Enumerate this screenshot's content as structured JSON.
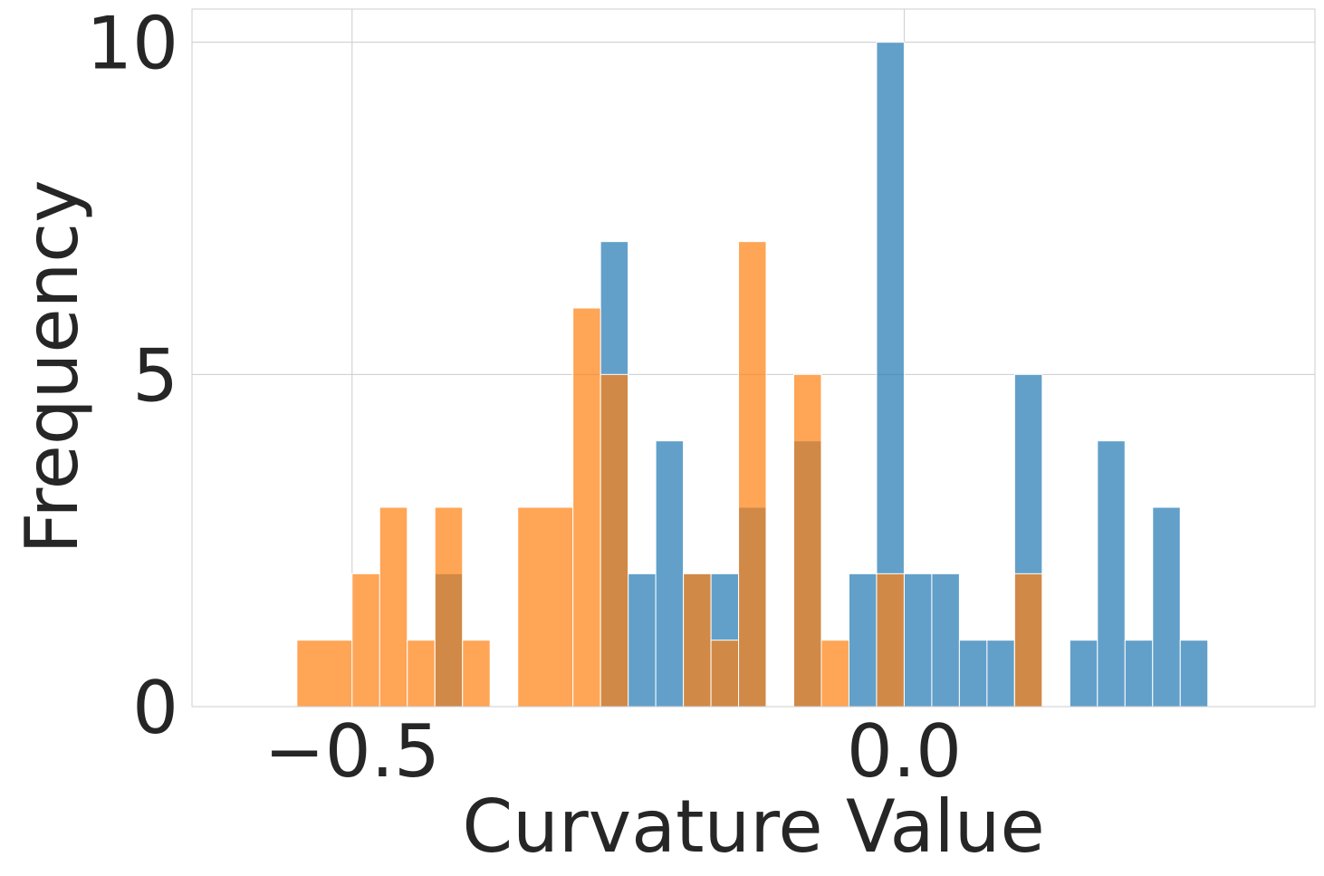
{
  "chart_data": {
    "type": "bar",
    "subtype": "overlaid-histogram",
    "title": "",
    "xlabel": "Curvature Value",
    "ylabel": "Frequency",
    "xlim": [
      -0.645,
      0.372
    ],
    "ylim": [
      0,
      10.5
    ],
    "xticks": [
      {
        "value": -0.5,
        "label": "−0.5"
      },
      {
        "value": 0.0,
        "label": "0.0"
      }
    ],
    "yticks": [
      {
        "value": 0,
        "label": "0"
      },
      {
        "value": 5,
        "label": "5"
      },
      {
        "value": 10,
        "label": "10"
      }
    ],
    "grid": true,
    "legend": "none",
    "bin_width": 0.025,
    "series": [
      {
        "color": "#1f77b4",
        "alpha": 0.7,
        "bins": [
          {
            "x0": -0.425,
            "x1": -0.4,
            "count": 2
          },
          {
            "x0": -0.275,
            "x1": -0.25,
            "count": 7
          },
          {
            "x0": -0.25,
            "x1": -0.225,
            "count": 2
          },
          {
            "x0": -0.225,
            "x1": -0.2,
            "count": 4
          },
          {
            "x0": -0.2,
            "x1": -0.175,
            "count": 2
          },
          {
            "x0": -0.175,
            "x1": -0.15,
            "count": 2
          },
          {
            "x0": -0.15,
            "x1": -0.125,
            "count": 3
          },
          {
            "x0": -0.1,
            "x1": -0.075,
            "count": 4
          },
          {
            "x0": -0.05,
            "x1": -0.025,
            "count": 2
          },
          {
            "x0": -0.025,
            "x1": 0.0,
            "count": 10
          },
          {
            "x0": 0.0,
            "x1": 0.025,
            "count": 2
          },
          {
            "x0": 0.025,
            "x1": 0.05,
            "count": 2
          },
          {
            "x0": 0.05,
            "x1": 0.075,
            "count": 1
          },
          {
            "x0": 0.075,
            "x1": 0.1,
            "count": 1
          },
          {
            "x0": 0.1,
            "x1": 0.125,
            "count": 5
          },
          {
            "x0": 0.15,
            "x1": 0.175,
            "count": 1
          },
          {
            "x0": 0.175,
            "x1": 0.2,
            "count": 4
          },
          {
            "x0": 0.2,
            "x1": 0.225,
            "count": 1
          },
          {
            "x0": 0.225,
            "x1": 0.25,
            "count": 3
          },
          {
            "x0": 0.25,
            "x1": 0.275,
            "count": 1
          }
        ]
      },
      {
        "color": "#ff7f0e",
        "alpha": 0.7,
        "bins": [
          {
            "x0": -0.55,
            "x1": -0.5,
            "count": 1
          },
          {
            "x0": -0.5,
            "x1": -0.475,
            "count": 2
          },
          {
            "x0": -0.475,
            "x1": -0.45,
            "count": 3
          },
          {
            "x0": -0.45,
            "x1": -0.425,
            "count": 1
          },
          {
            "x0": -0.425,
            "x1": -0.4,
            "count": 3
          },
          {
            "x0": -0.4,
            "x1": -0.375,
            "count": 1
          },
          {
            "x0": -0.35,
            "x1": -0.3,
            "count": 3
          },
          {
            "x0": -0.3,
            "x1": -0.275,
            "count": 6
          },
          {
            "x0": -0.275,
            "x1": -0.25,
            "count": 5
          },
          {
            "x0": -0.2,
            "x1": -0.175,
            "count": 2
          },
          {
            "x0": -0.175,
            "x1": -0.15,
            "count": 1
          },
          {
            "x0": -0.15,
            "x1": -0.125,
            "count": 7
          },
          {
            "x0": -0.1,
            "x1": -0.075,
            "count": 5
          },
          {
            "x0": -0.075,
            "x1": -0.05,
            "count": 1
          },
          {
            "x0": -0.025,
            "x1": 0.0,
            "count": 2
          },
          {
            "x0": 0.1,
            "x1": 0.125,
            "count": 2
          }
        ]
      }
    ]
  }
}
